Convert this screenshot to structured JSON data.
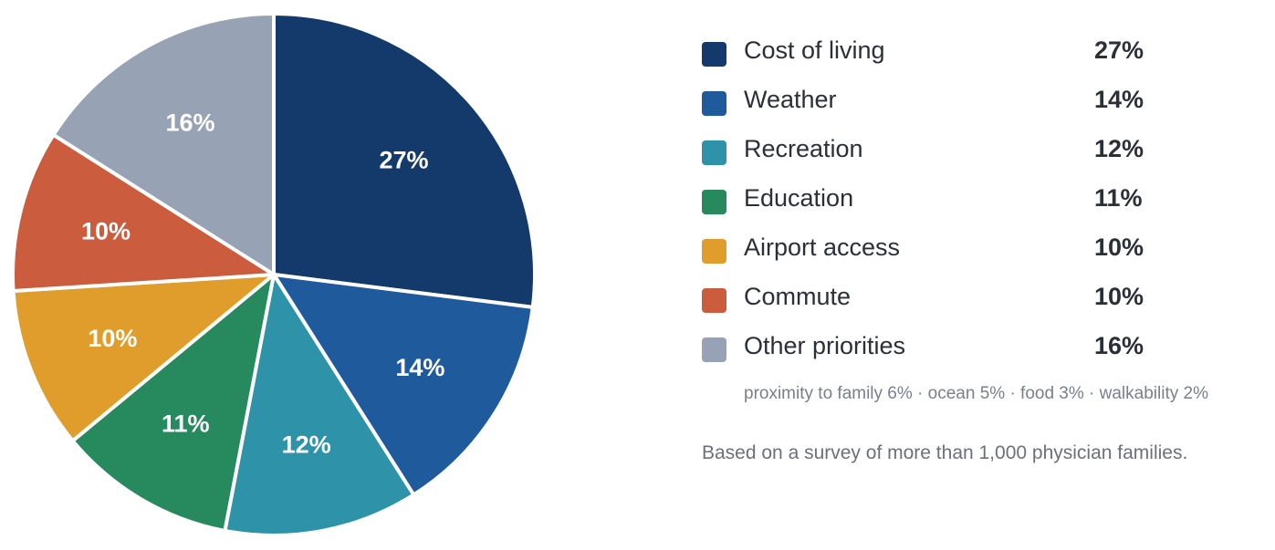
{
  "chart_data": {
    "type": "pie",
    "unit": "%",
    "slices": [
      {
        "label": "Cost of living",
        "value": 27,
        "display": "27%",
        "color": "#133a6b"
      },
      {
        "label": "Weather",
        "value": 14,
        "display": "14%",
        "color": "#1f5a9c"
      },
      {
        "label": "Recreation",
        "value": 12,
        "display": "12%",
        "color": "#2e93a8"
      },
      {
        "label": "Education",
        "value": 11,
        "display": "11%",
        "color": "#268a5e"
      },
      {
        "label": "Airport access",
        "value": 10,
        "display": "10%",
        "color": "#e09d2c"
      },
      {
        "label": "Commute",
        "value": 10,
        "display": "10%",
        "color": "#cc5c3e"
      },
      {
        "label": "Other priorities",
        "value": 16,
        "display": "16%",
        "color": "#97a3b4"
      }
    ],
    "start_angle_deg": 0,
    "direction": "clockwise",
    "legend_position": "right"
  },
  "breakdown_note": "proximity to family 6% · ocean 5% · food 3% · walkability 2%",
  "footnote": "Based on a survey of more than 1,000 physician families."
}
